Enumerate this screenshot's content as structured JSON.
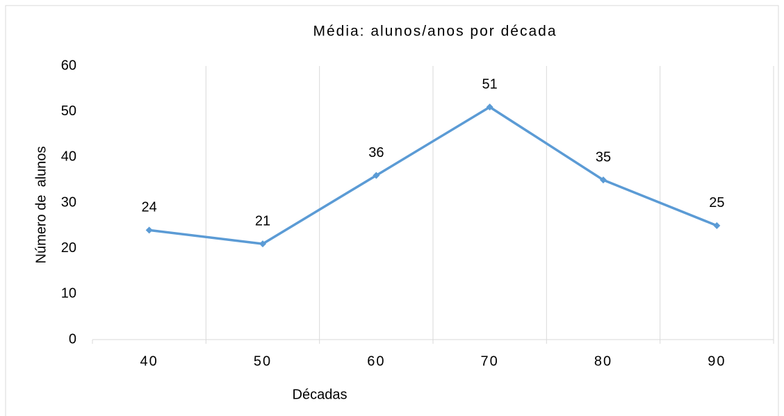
{
  "chart_data": {
    "type": "line",
    "title": "Média: alunos/anos por década",
    "xlabel": "Décadas",
    "ylabel": "Número de  alunos",
    "categories": [
      "40",
      "50",
      "60",
      "70",
      "80",
      "90"
    ],
    "series": [
      {
        "name": "Média",
        "color": "#5b9bd5",
        "values": [
          24,
          21,
          36,
          51,
          35,
          25
        ]
      }
    ],
    "ylim": [
      0,
      60
    ],
    "yticks": [
      0,
      10,
      20,
      30,
      40,
      50,
      60
    ],
    "xgrid": true,
    "legend": false
  }
}
